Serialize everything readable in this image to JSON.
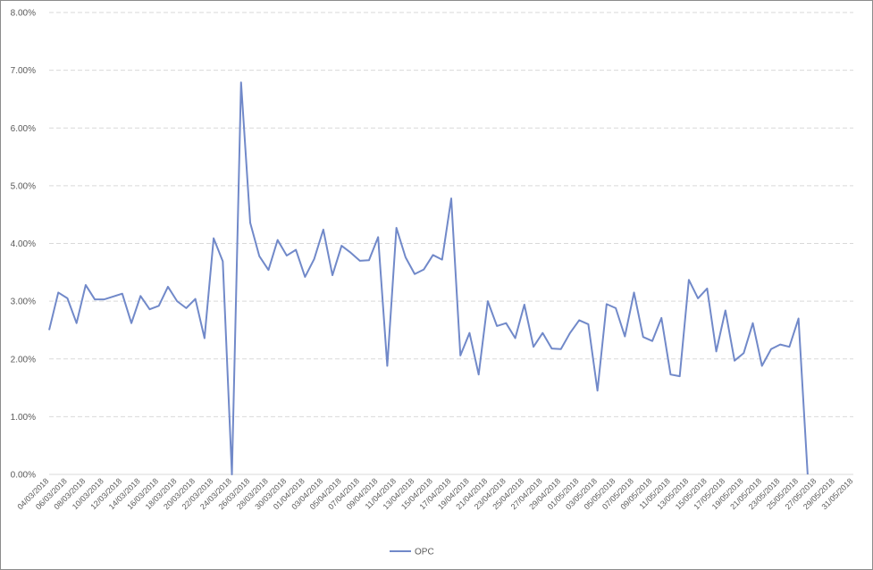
{
  "chart_data": {
    "type": "line",
    "categories": [
      "04/03/2018",
      null,
      "06/03/2018",
      null,
      "08/03/2018",
      null,
      "10/03/2018",
      null,
      "12/03/2018",
      null,
      "14/03/2018",
      null,
      "16/03/2018",
      null,
      "18/03/2018",
      null,
      "20/03/2018",
      null,
      "22/03/2018",
      null,
      "24/03/2018",
      null,
      "26/03/2018",
      null,
      "28/03/2018",
      null,
      "30/03/2018",
      null,
      "01/04/2018",
      null,
      "03/04/2018",
      null,
      "05/04/2018",
      null,
      "07/04/2018",
      null,
      "09/04/2018",
      null,
      "11/04/2018",
      null,
      "13/04/2018",
      null,
      "15/04/2018",
      null,
      "17/04/2018",
      null,
      "19/04/2018",
      null,
      "21/04/2018",
      null,
      "23/04/2018",
      null,
      "25/04/2018",
      null,
      "27/04/2018",
      null,
      "29/04/2018",
      null,
      "01/05/2018",
      null,
      "03/05/2018",
      null,
      "05/05/2018",
      null,
      "07/05/2018",
      null,
      "09/05/2018",
      null,
      "11/05/2018",
      null,
      "13/05/2018",
      null,
      "15/05/2018",
      null,
      "17/05/2018",
      null,
      "19/05/2018",
      null,
      "21/05/2018",
      null,
      "23/05/2018",
      null,
      "25/05/2018",
      null,
      "27/05/2018",
      null,
      "29/05/2018",
      null,
      "31/05/2018"
    ],
    "series": [
      {
        "name": "OPC",
        "color": "#7189c9",
        "values": [
          2.5,
          3.15,
          3.05,
          2.62,
          3.28,
          3.03,
          3.03,
          3.08,
          3.13,
          2.62,
          3.09,
          2.86,
          2.92,
          3.25,
          3.0,
          2.88,
          3.04,
          2.36,
          4.09,
          3.69,
          0.0,
          6.79,
          4.36,
          3.78,
          3.54,
          4.06,
          3.79,
          3.89,
          3.42,
          3.73,
          4.24,
          3.45,
          3.96,
          3.84,
          3.7,
          3.71,
          4.11,
          1.88,
          4.27,
          3.76,
          3.47,
          3.55,
          3.8,
          3.72,
          4.78,
          2.06,
          2.45,
          1.73,
          3.0,
          2.57,
          2.62,
          2.36,
          2.94,
          2.21,
          2.45,
          2.18,
          2.17,
          2.45,
          2.67,
          2.6,
          1.45,
          2.95,
          2.88,
          2.39,
          3.15,
          2.38,
          2.31,
          2.71,
          1.73,
          1.7,
          3.37,
          3.05,
          3.22,
          2.13,
          2.84,
          1.97,
          2.1,
          2.62,
          1.88,
          2.17,
          2.25,
          2.21,
          2.7,
          0.0,
          null,
          null,
          null,
          null,
          null
        ]
      }
    ],
    "ylim": [
      0,
      8
    ],
    "yticks": [
      {
        "value": 0,
        "label": "0.00%"
      },
      {
        "value": 1,
        "label": "1.00%"
      },
      {
        "value": 2,
        "label": "2.00%"
      },
      {
        "value": 3,
        "label": "3.00%"
      },
      {
        "value": 4,
        "label": "4.00%"
      },
      {
        "value": 5,
        "label": "5.00%"
      },
      {
        "value": 6,
        "label": "6.00%"
      },
      {
        "value": 7,
        "label": "7.00%"
      },
      {
        "value": 8,
        "label": "8.00%"
      }
    ],
    "grid": true,
    "legend": "bottom"
  }
}
